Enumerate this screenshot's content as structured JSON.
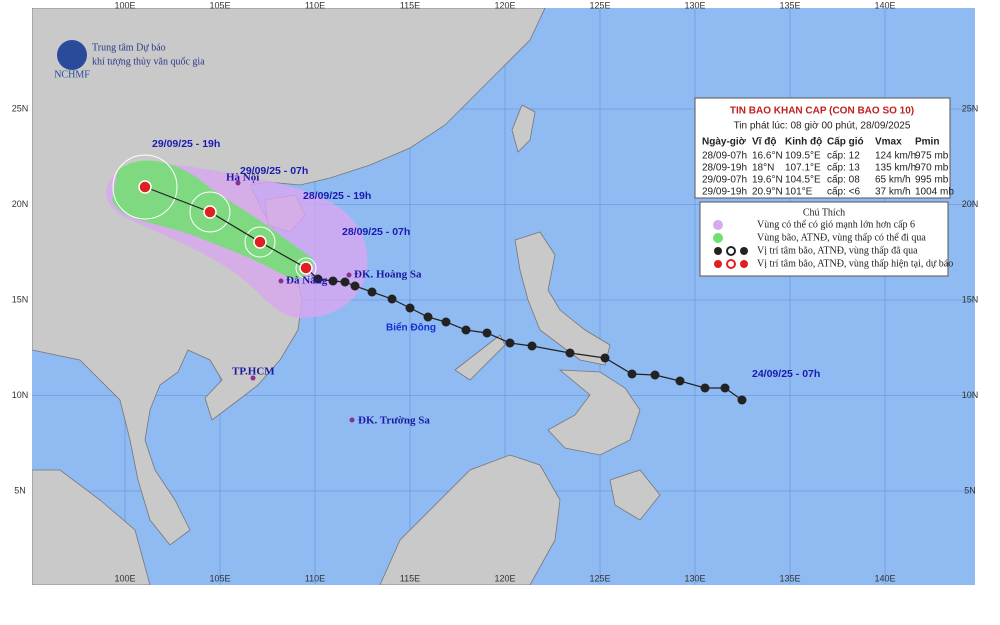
{
  "header": {
    "org_line1": "Trung tâm Dự báo",
    "org_line2": "khí tượng thủy văn quốc gia",
    "logo_text": "NCHMF"
  },
  "axes": {
    "top": [
      "100E",
      "105E",
      "110E",
      "115E",
      "120E",
      "125E",
      "130E",
      "135E",
      "140E"
    ],
    "bottom": [
      "100E",
      "105E",
      "110E",
      "115E",
      "120E",
      "125E",
      "130E",
      "135E",
      "140E"
    ],
    "left": [
      "25N",
      "20N",
      "15N",
      "10N",
      "5N"
    ],
    "right": [
      "25N",
      "20N",
      "15N",
      "10N",
      "5N"
    ]
  },
  "bulletin": {
    "title": "TIN BAO KHAN CAP (CON BAO SO 10)",
    "issued": "Tin phát lúc: 08 giờ 00 phút, 28/09/2025",
    "columns": [
      "Ngày-giờ",
      "Vĩ độ",
      "Kinh độ",
      "Cấp gió",
      "Vmax",
      "Pmin"
    ],
    "rows": [
      [
        "28/09-07h",
        "16.6°N",
        "109.5°E",
        "cấp: 12",
        "124 km/h",
        "975 mb"
      ],
      [
        "28/09-19h",
        "18°N",
        "107.1°E",
        "cấp: 13",
        "135 km/h",
        "970 mb"
      ],
      [
        "29/09-07h",
        "19.6°N",
        "104.5°E",
        "cấp: 08",
        "65 km/h",
        "995 mb"
      ],
      [
        "29/09-19h",
        "20.9°N",
        "101°E",
        "cấp: <6",
        "37 km/h",
        "1004 mb"
      ]
    ]
  },
  "legend": {
    "title": "Chú Thích",
    "items": [
      "Vùng có thể có gió mạnh lớn hơn cấp 6",
      "Vùng bão, ATNĐ, vùng thấp có thể đi qua",
      "Vị trí tâm bão, ATNĐ, vùng thấp đã qua",
      "Vị trí tâm bão, ATNĐ, vùng thấp hiện tại, dự báo"
    ]
  },
  "places": [
    "Hà Nội",
    "Đà Nẵng",
    "ĐK. Hoàng Sa",
    "TP.HCM",
    "ĐK. Trường Sa"
  ],
  "sea_label": "Biển Đông",
  "track_labels": [
    "29/09/25 - 19h",
    "29/09/25 - 07h",
    "28/09/25 - 19h",
    "28/09/25 - 07h",
    "24/09/25 - 07h"
  ]
}
